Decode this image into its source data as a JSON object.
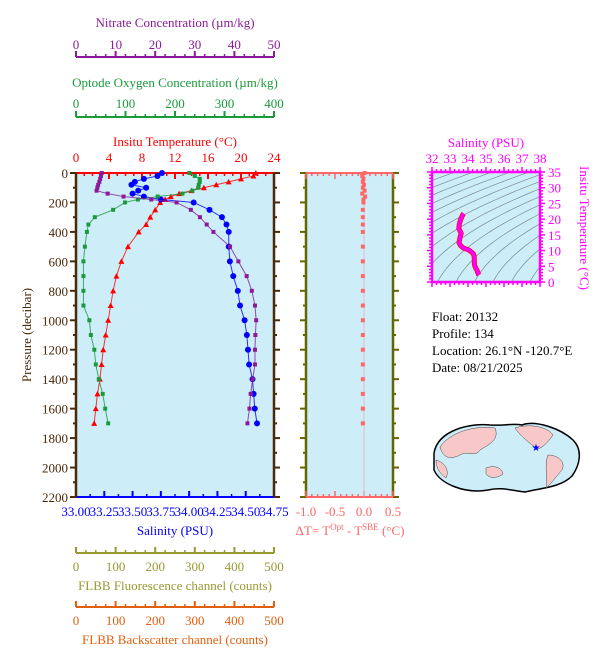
{
  "colors": {
    "temperature": "#ff0000",
    "salinity": "#0000ff",
    "oxygen": "#1a9a3a",
    "nitrate": "#8b1a9b",
    "fluorescence": "#999933",
    "backscatter": "#e06010",
    "deltaT": "#ff6666",
    "ts": "#ff00ff",
    "axis": "#4a2a0a",
    "olive": "#666600",
    "plot_bg": "#cdeef8",
    "land": "#f8c8c8"
  },
  "chart_data": [
    {
      "type": "line",
      "ylabel": "Pressure (decibar)",
      "ylim": [
        2200,
        0
      ],
      "yticks": [
        0,
        200,
        400,
        600,
        800,
        1000,
        1200,
        1400,
        1600,
        1800,
        2000,
        2200
      ],
      "pressure": [
        0,
        20,
        40,
        60,
        80,
        100,
        120,
        140,
        160,
        180,
        200,
        250,
        300,
        350,
        400,
        500,
        600,
        700,
        800,
        900,
        1000,
        1100,
        1200,
        1300,
        1400,
        1500,
        1600,
        1700
      ],
      "series": [
        {
          "name": "Insitu Temperature (°C)",
          "axis": "top",
          "xlim": [
            0,
            24
          ],
          "xticks": [
            0,
            4,
            8,
            12,
            16,
            20,
            24
          ],
          "marker": "triangle",
          "values": [
            21.8,
            21.5,
            20,
            18.5,
            17,
            15.5,
            14,
            12.5,
            11.5,
            10.8,
            10.2,
            9.6,
            9,
            8.5,
            7.6,
            6.3,
            5.5,
            4.9,
            4.5,
            4.2,
            3.9,
            3.6,
            3.3,
            3.1,
            2.9,
            2.6,
            2.4,
            2.2
          ]
        },
        {
          "name": "Salinity (PSU)",
          "axis": "bottom",
          "xlim": [
            33,
            34.75
          ],
          "xticks": [
            "33.00",
            "33.25",
            "33.50",
            "33.75",
            "34.00",
            "34.25",
            "34.50",
            "34.75"
          ],
          "marker": "circle",
          "values": [
            33.76,
            33.72,
            33.6,
            33.52,
            33.49,
            33.62,
            33.55,
            33.5,
            33.6,
            33.75,
            34.04,
            34.18,
            34.29,
            34.33,
            34.35,
            34.35,
            34.36,
            34.39,
            34.43,
            34.45,
            34.49,
            34.51,
            34.52,
            34.53,
            34.56,
            34.57,
            34.58,
            34.6
          ]
        },
        {
          "name": "Optode Oxygen Concentration (µm/kg)",
          "axis": "top2",
          "xlim": [
            0,
            400
          ],
          "xticks": [
            0,
            100,
            200,
            300,
            400
          ],
          "marker": "square",
          "values": [
            229,
            240,
            250,
            250,
            248,
            247,
            235,
            215,
            165,
            125,
            99,
            75,
            38,
            25,
            22,
            18,
            15,
            15,
            15,
            15,
            27,
            30,
            37,
            40,
            46,
            54,
            59,
            65
          ]
        },
        {
          "name": "Nitrate Concentration (µm/kg)",
          "axis": "top3",
          "xlim": [
            0,
            50
          ],
          "xticks": [
            0,
            10,
            20,
            30,
            40,
            50
          ],
          "marker": "square",
          "values": [
            6.5,
            6.3,
            6.1,
            5.9,
            5.6,
            5.4,
            5.2,
            8,
            12,
            19,
            25.4,
            29,
            31.3,
            33,
            34.7,
            38.9,
            41,
            43.1,
            44.4,
            45.2,
            45.5,
            45.3,
            45.2,
            45.2,
            44.6,
            44.1,
            43.8,
            43.3
          ]
        }
      ],
      "extra_axes": [
        {
          "name": "FLBB Fluorescence channel (counts)",
          "xlim": [
            0,
            500
          ],
          "xticks": [
            0,
            100,
            200,
            300,
            400,
            500
          ]
        },
        {
          "name": "FLBB Backscatter channel (counts)",
          "xlim": [
            0,
            500
          ],
          "xticks": [
            0,
            100,
            200,
            300,
            400,
            500
          ]
        }
      ]
    },
    {
      "type": "scatter",
      "xlabel_parts": [
        "ΔT= T",
        "Opt",
        " - T",
        "SBE",
        " (°C)"
      ],
      "xlim": [
        -1.0,
        0.5
      ],
      "xticks": [
        "-1.0",
        "-0.5",
        "0.0",
        "0.5"
      ],
      "ylim": [
        2200,
        0
      ],
      "pressure": [
        0,
        20,
        40,
        60,
        80,
        100,
        120,
        140,
        160,
        180,
        200,
        250,
        300,
        350,
        400,
        500,
        600,
        700,
        800,
        900,
        1000,
        1100,
        1200,
        1300,
        1400,
        1500,
        1600,
        1700
      ],
      "values": [
        0.01,
        -0.03,
        -0.01,
        -0.02,
        0.0,
        -0.02,
        0.01,
        -0.03,
        0.02,
        -0.01,
        -0.01,
        -0.02,
        -0.02,
        -0.02,
        -0.02,
        -0.02,
        -0.02,
        -0.02,
        -0.02,
        -0.02,
        -0.02,
        -0.02,
        -0.02,
        -0.02,
        -0.02,
        -0.02,
        -0.02,
        -0.02
      ]
    },
    {
      "type": "line",
      "title": "Salinity (PSU)",
      "xlim": [
        32,
        38
      ],
      "xticks": [
        32,
        33,
        34,
        35,
        36,
        37,
        38
      ],
      "ylabel": "Insitu Temperature (°C)",
      "ylim": [
        0,
        35
      ],
      "yticks": [
        0,
        5,
        10,
        15,
        20,
        25,
        30,
        35
      ],
      "density_contours": true
    }
  ],
  "info": {
    "float": "Float:  20132",
    "profile": "Profile:  134",
    "location": "Location:  26.1°N  -120.7°E",
    "date": "Date:  08/21/2025"
  },
  "map": {
    "marker": "star",
    "marker_color": "#0000ff"
  }
}
